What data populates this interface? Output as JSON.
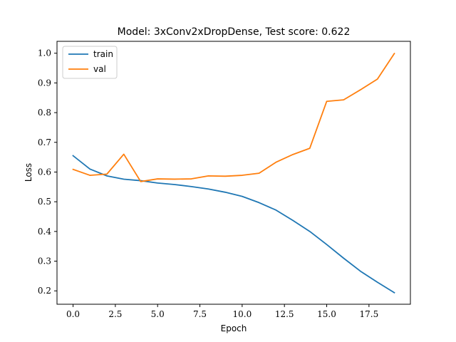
{
  "chart_data": {
    "type": "line",
    "title": "Model: 3xConv2xDropDense, Test score: 0.622",
    "xlabel": "Epoch",
    "ylabel": "Loss",
    "xlim": [
      -0.95,
      19.95
    ],
    "ylim": [
      0.155,
      1.04
    ],
    "xticks": [
      0.0,
      2.5,
      5.0,
      7.5,
      10.0,
      12.5,
      15.0,
      17.5
    ],
    "xtick_labels": [
      "0.0",
      "2.5",
      "5.0",
      "7.5",
      "10.0",
      "12.5",
      "15.0",
      "17.5"
    ],
    "yticks": [
      0.2,
      0.3,
      0.4,
      0.5,
      0.6,
      0.7,
      0.8,
      0.9,
      1.0
    ],
    "ytick_labels": [
      "0.2",
      "0.3",
      "0.4",
      "0.5",
      "0.6",
      "0.7",
      "0.8",
      "0.9",
      "1.0"
    ],
    "grid": false,
    "legend_position": "top-left",
    "x": [
      0,
      1,
      2,
      3,
      4,
      5,
      6,
      7,
      8,
      9,
      10,
      11,
      12,
      13,
      14,
      15,
      16,
      17,
      18,
      19
    ],
    "series": [
      {
        "name": "train",
        "color": "#1f77b4",
        "values": [
          0.655,
          0.61,
          0.587,
          0.576,
          0.571,
          0.563,
          0.558,
          0.551,
          0.543,
          0.532,
          0.518,
          0.497,
          0.472,
          0.437,
          0.4,
          0.356,
          0.31,
          0.266,
          0.229,
          0.194
        ]
      },
      {
        "name": "val",
        "color": "#ff7f0e",
        "values": [
          0.609,
          0.589,
          0.593,
          0.66,
          0.568,
          0.577,
          0.576,
          0.577,
          0.587,
          0.586,
          0.589,
          0.596,
          0.633,
          0.659,
          0.68,
          0.838,
          0.843,
          0.877,
          0.913,
          0.999
        ]
      }
    ]
  }
}
